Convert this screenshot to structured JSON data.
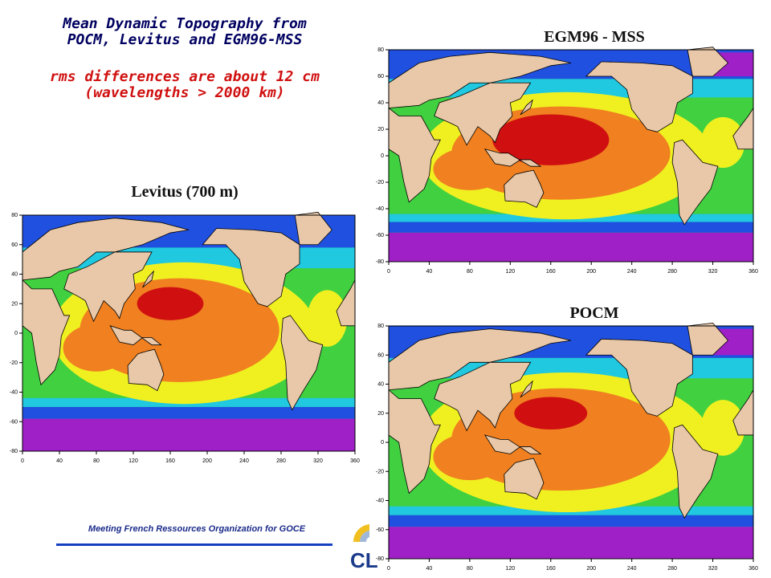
{
  "slide": {
    "title_line1": "Mean Dynamic Topography from",
    "title_line2": "POCM, Levitus and EGM96-MSS",
    "subtitle_line1": "rms differences are about 12 cm",
    "subtitle_line2": "(wavelengths > 2000 km)",
    "footer": "Meeting French Ressources Organization for GOCE",
    "logo_text": "CL"
  },
  "maps": [
    {
      "id": "levitus",
      "title": "Levitus (700 m)",
      "x_ticks": [
        "0",
        "40",
        "80",
        "120",
        "160",
        "200",
        "240",
        "280",
        "320",
        "360"
      ],
      "y_ticks": [
        "80",
        "60",
        "40",
        "20",
        "0",
        "-20",
        "-40",
        "-60",
        "-80"
      ]
    },
    {
      "id": "egm96",
      "title": "EGM96 - MSS",
      "x_ticks": [
        "0",
        "40",
        "80",
        "120",
        "160",
        "200",
        "240",
        "280",
        "320",
        "360"
      ],
      "y_ticks": [
        "80",
        "60",
        "40",
        "20",
        "0",
        "-20",
        "-40",
        "-60",
        "-80"
      ]
    },
    {
      "id": "pocm",
      "title": "POCM",
      "x_ticks": [
        "0",
        "40",
        "80",
        "120",
        "160",
        "200",
        "240",
        "280",
        "320",
        "360"
      ],
      "y_ticks": [
        "80",
        "60",
        "40",
        "20",
        "0",
        "-20",
        "-40",
        "-60",
        "-80"
      ]
    }
  ],
  "colors": {
    "land": "#e8c8a8",
    "polar": "#a020c8",
    "deep_blue": "#2050e0",
    "cyan": "#20c8e0",
    "green": "#40d040",
    "yellow": "#f0f020",
    "orange": "#f08020",
    "red": "#d01010"
  }
}
